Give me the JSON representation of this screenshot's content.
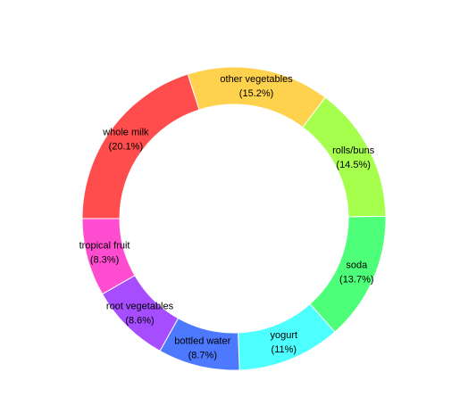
{
  "chart_data": {
    "type": "donut",
    "categories": [
      "whole milk",
      "other vegetables",
      "rolls/buns",
      "soda",
      "yogurt",
      "bottled water",
      "root vegetables",
      "tropical fruit"
    ],
    "values": [
      20.1,
      15.2,
      14.5,
      13.7,
      11,
      8.7,
      8.6,
      8.3
    ],
    "value_labels": [
      "(20.1%)",
      "(15.2%)",
      "(14.5%)",
      "(13.7%)",
      "(11%)",
      "(8.7%)",
      "(8.6%)",
      "(8.3%)"
    ],
    "colors": [
      "#ff4d4d",
      "#ffd24d",
      "#a6ff4d",
      "#4dff79",
      "#4dffff",
      "#4d79ff",
      "#a64dff",
      "#ff4dd2"
    ]
  }
}
